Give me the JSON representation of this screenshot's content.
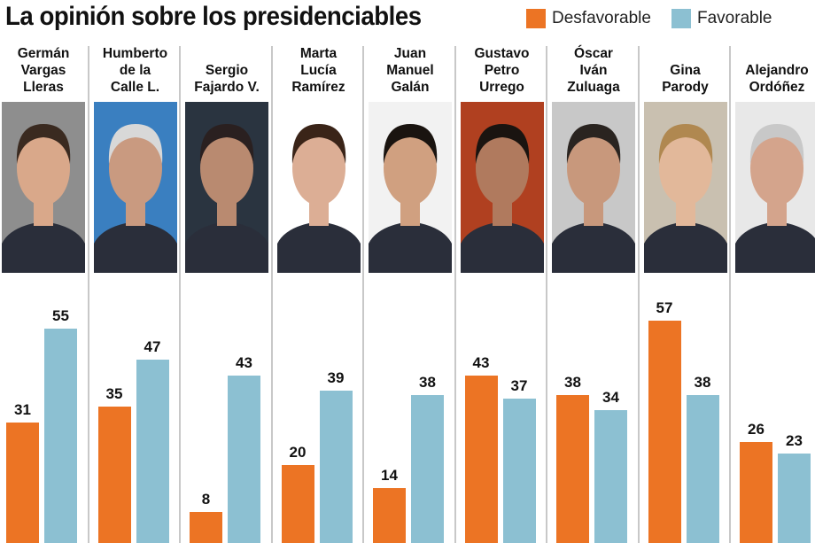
{
  "title": "La opinión sobre los presidenciables",
  "colors": {
    "desfavorable": "#ec7424",
    "favorable": "#8cc0d2"
  },
  "chart_data": {
    "type": "bar",
    "title": "La opinión sobre los presidenciables",
    "categories": [
      [
        "Germán",
        "Vargas",
        "Lleras"
      ],
      [
        "Humberto",
        "de la",
        "Calle L."
      ],
      [
        "Sergio",
        "Fajardo V."
      ],
      [
        "Marta",
        "Lucía",
        "Ramírez"
      ],
      [
        "Juan",
        "Manuel",
        "Galán"
      ],
      [
        "Gustavo",
        "Petro",
        "Urrego"
      ],
      [
        "Óscar",
        "Iván",
        "Zuluaga"
      ],
      [
        "Gina",
        "Parody"
      ],
      [
        "Alejandro",
        "Ordóñez"
      ]
    ],
    "series": [
      {
        "name": "Desfavorable",
        "values": [
          31,
          35,
          8,
          20,
          14,
          43,
          38,
          57,
          26
        ]
      },
      {
        "name": "Favorable",
        "values": [
          55,
          47,
          43,
          39,
          38,
          37,
          34,
          38,
          23
        ]
      }
    ],
    "ylim": [
      0,
      60
    ],
    "grid": false,
    "legend": "top-right"
  }
}
